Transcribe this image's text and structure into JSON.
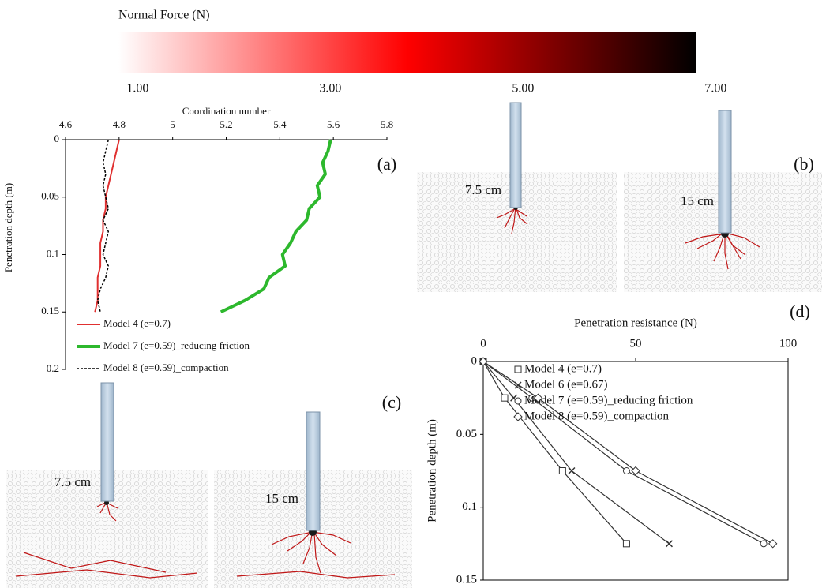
{
  "chart_data": [
    {
      "type": "colorbar",
      "title": "Normal Force (N)",
      "lim": [
        0.8,
        6.8
      ],
      "ticks": [
        {
          "value": 1,
          "label": "1.00"
        },
        {
          "value": 3,
          "label": "3.00"
        },
        {
          "value": 5,
          "label": "5.00"
        },
        {
          "value": 7,
          "label": "7.00"
        }
      ],
      "colors": [
        "#ffffff",
        "#ff0000",
        "#000000"
      ]
    },
    {
      "type": "line",
      "xlabel": "Coordination number",
      "ylabel": "Penetration depth (m)",
      "xlim": [
        4.6,
        5.8
      ],
      "xticks": [
        4.6,
        4.8,
        5,
        5.2,
        5.4,
        5.6,
        5.8
      ],
      "ylim": [
        0,
        0.2
      ],
      "yticks": [
        0,
        0.05,
        0.1,
        0.15,
        0.2
      ],
      "y_inverted": true,
      "y": [
        0,
        0.01,
        0.02,
        0.03,
        0.04,
        0.05,
        0.06,
        0.07,
        0.08,
        0.09,
        0.1,
        0.11,
        0.12,
        0.13,
        0.14,
        0.15
      ],
      "series": [
        {
          "name": "Model 4 (e=0.7)",
          "color": "#e03030",
          "linewidth": 2,
          "linestyle": "solid",
          "x": [
            4.8,
            4.79,
            4.78,
            4.77,
            4.76,
            4.75,
            4.75,
            4.74,
            4.74,
            4.73,
            4.73,
            4.73,
            4.72,
            4.72,
            4.72,
            4.71
          ]
        },
        {
          "name": "Model 7 (e=0.59)_reducing friction",
          "color": "#2db82d",
          "linewidth": 4,
          "linestyle": "solid",
          "x": [
            5.59,
            5.58,
            5.56,
            5.57,
            5.54,
            5.55,
            5.51,
            5.5,
            5.46,
            5.44,
            5.41,
            5.42,
            5.36,
            5.34,
            5.27,
            5.18
          ]
        },
        {
          "name": "Model 8 (e=0.59)_compaction",
          "color": "#000000",
          "linewidth": 1.5,
          "linestyle": "dashed",
          "x": [
            4.76,
            4.75,
            4.74,
            4.75,
            4.74,
            4.75,
            4.76,
            4.74,
            4.76,
            4.75,
            4.74,
            4.76,
            4.75,
            4.73,
            4.72,
            4.73
          ]
        }
      ]
    },
    {
      "type": "line",
      "xlabel": "Penetration resistance (N)",
      "ylabel": "Penetration depth (m)",
      "xlim": [
        0,
        100
      ],
      "xticks": [
        0,
        50,
        100
      ],
      "ylim": [
        0,
        0.15
      ],
      "yticks": [
        0,
        0.05,
        0.1,
        0.15
      ],
      "y_inverted": true,
      "y": [
        0,
        0.025,
        0.075,
        0.125
      ],
      "series": [
        {
          "name": "Model 4 (e=0.7)",
          "color": "#333333",
          "marker": "square",
          "x": [
            0,
            7,
            26,
            47
          ]
        },
        {
          "name": "Model 6 (e=0.67)",
          "color": "#333333",
          "marker": "x",
          "x": [
            0,
            10,
            29,
            61
          ]
        },
        {
          "name": "Model 7 (e=0.59)_reducing friction",
          "color": "#333333",
          "marker": "circle",
          "x": [
            0,
            16,
            47,
            92
          ]
        },
        {
          "name": "Model 8 (e=0.59)_compaction",
          "color": "#333333",
          "marker": "diamond",
          "x": [
            0,
            18,
            50,
            95
          ]
        }
      ]
    }
  ],
  "panels": {
    "labels": [
      "(a)",
      "(b)",
      "(c)",
      "(d)"
    ],
    "depth_labels": [
      "7.5 cm",
      "15 cm",
      "7.5 cm",
      "15 cm"
    ]
  }
}
